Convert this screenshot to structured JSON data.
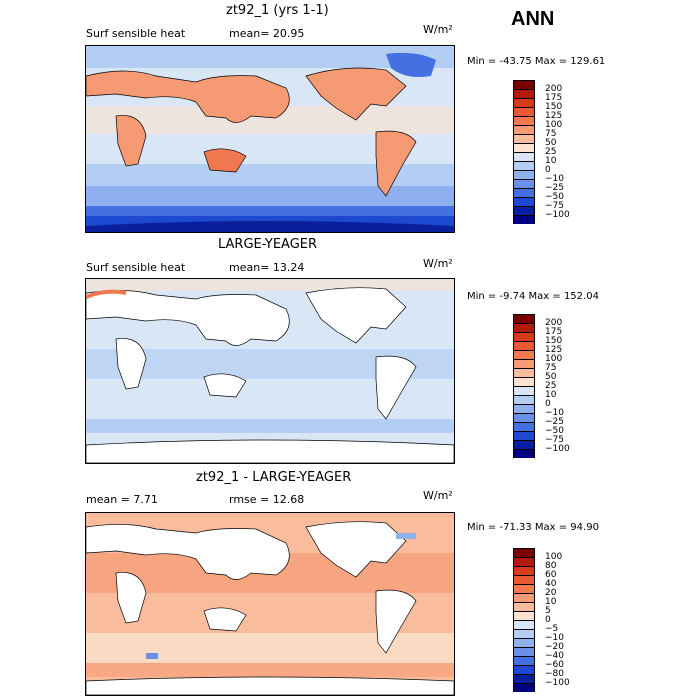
{
  "header": {
    "season": "ANN"
  },
  "panels": [
    {
      "title": "zt92_1 (yrs 1-1)",
      "left_label": "Surf sensible heat",
      "mid_label": "mean=  20.95",
      "units": "W/m²",
      "minmax": "Min = -43.75 Max = 129.61",
      "levels": [
        "200",
        "175",
        "150",
        "125",
        "100",
        "75",
        "50",
        "25",
        "10",
        "0",
        "−10",
        "−25",
        "−50",
        "−75",
        "−100"
      ],
      "colors": [
        "#7a0000",
        "#b11a0c",
        "#d63b1a",
        "#ea5a33",
        "#f2794f",
        "#f69a74",
        "#f9bd9d",
        "#fde2cf",
        "#d8e6f6",
        "#b4cdf2",
        "#8fb0ef",
        "#6a90ea",
        "#4470e2",
        "#1d49d0",
        "#0a1f9c",
        "#000080"
      ]
    },
    {
      "title": "LARGE-YEAGER",
      "left_label": "Surf sensible heat",
      "mid_label": "mean=  13.24",
      "units": "W/m²",
      "minmax": "Min =  -9.74 Max = 152.04",
      "levels": [
        "200",
        "175",
        "150",
        "125",
        "100",
        "75",
        "50",
        "25",
        "10",
        "0",
        "−10",
        "−25",
        "−50",
        "−75",
        "−100"
      ],
      "colors": [
        "#7a0000",
        "#b11a0c",
        "#d63b1a",
        "#ea5a33",
        "#f2794f",
        "#f69a74",
        "#f9bd9d",
        "#fde2cf",
        "#d8e6f6",
        "#b4cdf2",
        "#8fb0ef",
        "#6a90ea",
        "#4470e2",
        "#1d49d0",
        "#0a1f9c",
        "#000080"
      ]
    },
    {
      "title": "zt92_1 - LARGE-YEAGER",
      "left_label": "mean =   7.71",
      "mid_label": "rmse =  12.68",
      "units": "W/m²",
      "minmax": "Min = -71.33 Max =  94.90",
      "levels": [
        "100",
        "80",
        "60",
        "40",
        "20",
        "10",
        "5",
        "0",
        "−5",
        "−10",
        "−20",
        "−40",
        "−60",
        "−80",
        "−100"
      ],
      "colors": [
        "#7a0000",
        "#b11a0c",
        "#d63b1a",
        "#ea5a33",
        "#f2794f",
        "#f69a74",
        "#f9bd9d",
        "#fde2cf",
        "#d8e6f6",
        "#b4cdf2",
        "#8fb0ef",
        "#6a90ea",
        "#4470e2",
        "#1d49d0",
        "#0a1f9c",
        "#000080"
      ]
    }
  ],
  "chart_data": [
    {
      "type": "heatmap",
      "title": "zt92_1 (yrs 1-1)",
      "variable": "Surf sensible heat",
      "units": "W/m²",
      "mean": 20.95,
      "min": -43.75,
      "max": 129.61,
      "levels": [
        200,
        175,
        150,
        125,
        100,
        75,
        50,
        25,
        10,
        0,
        -10,
        -25,
        -50,
        -75,
        -100
      ]
    },
    {
      "type": "heatmap",
      "title": "LARGE-YEAGER",
      "variable": "Surf sensible heat",
      "units": "W/m²",
      "mean": 13.24,
      "min": -9.74,
      "max": 152.04,
      "levels": [
        200,
        175,
        150,
        125,
        100,
        75,
        50,
        25,
        10,
        0,
        -10,
        -25,
        -50,
        -75,
        -100
      ]
    },
    {
      "type": "heatmap",
      "title": "zt92_1 - LARGE-YEAGER",
      "units": "W/m²",
      "mean": 7.71,
      "rmse": 12.68,
      "min": -71.33,
      "max": 94.9,
      "levels": [
        100,
        80,
        60,
        40,
        20,
        10,
        5,
        0,
        -5,
        -10,
        -20,
        -40,
        -60,
        -80,
        -100
      ]
    }
  ]
}
